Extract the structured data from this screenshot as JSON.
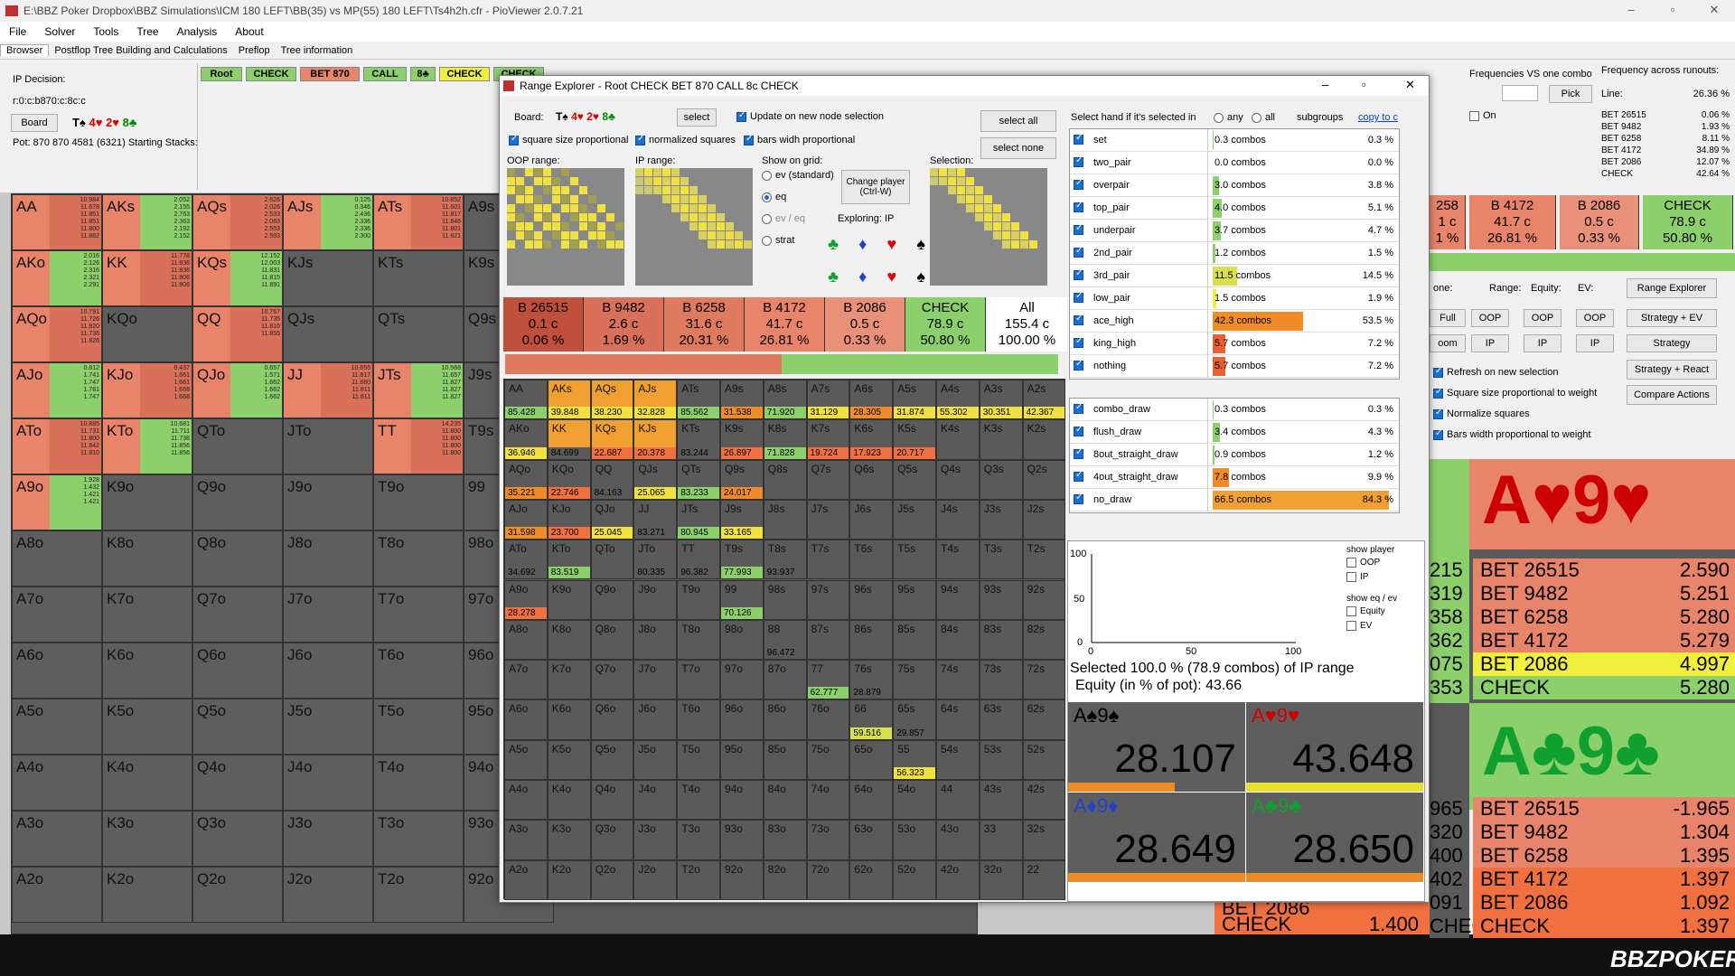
{
  "window": {
    "title": "E:\\BBZ Poker Dropbox\\BBZ Simulations\\ICM 180 LEFT\\BB(35) vs MP(55) 180 LEFT\\Ts4h2h.cfr - PioViewer 2.0.7.21"
  },
  "menu": [
    "File",
    "Solver",
    "Tools",
    "Tree",
    "Analysis",
    "About"
  ],
  "tabs": [
    "Browser",
    "Postflop Tree Building and Calculations",
    "Preflop",
    "Tree information"
  ],
  "left": {
    "decision": "IP Decision:",
    "board_code": "r:0:c:b870:c:8c:c",
    "board_btn": "Board",
    "board_cards": [
      {
        "t": "T♠",
        "c": "#000"
      },
      {
        "t": "4♥",
        "c": "#d00"
      },
      {
        "t": "2♥",
        "c": "#d00"
      },
      {
        "t": "8♣",
        "c": "#080"
      }
    ],
    "pot": "Pot: 870 870 4581 (6321) Starting Stacks:"
  },
  "path": [
    {
      "t": "Root",
      "bg": "#8cd06c"
    },
    {
      "t": "CHECK",
      "bg": "#8cd06c"
    },
    {
      "t": "BET 870",
      "bg": "#e8866a"
    },
    {
      "t": "CALL",
      "bg": "#8cd06c"
    },
    {
      "t": "8♣",
      "bg": "#8cd06c"
    },
    {
      "t": "CHECK",
      "bg": "#f0f03c"
    },
    {
      "t": "CHECK",
      "bg": "#8cd06c"
    }
  ],
  "main_grid": {
    "rows": [
      [
        "AA",
        "AKs",
        "AQs",
        "AJs",
        "ATs",
        "A9s"
      ],
      [
        "AKo",
        "KK",
        "KQs",
        "KJs",
        "KTs",
        "K9s"
      ],
      [
        "AQo",
        "KQo",
        "QQ",
        "QJs",
        "QTs",
        "Q9s"
      ],
      [
        "AJo",
        "KJo",
        "QJo",
        "JJ",
        "JTs",
        "J9s"
      ],
      [
        "ATo",
        "KTo",
        "QTo",
        "JTo",
        "TT",
        "T9s"
      ],
      [
        "A9o",
        "K9o",
        "Q9o",
        "J9o",
        "T9o",
        "99"
      ],
      [
        "A8o",
        "K8o",
        "Q8o",
        "J8o",
        "T8o",
        "98o"
      ],
      [
        "A7o",
        "K7o",
        "Q7o",
        "J7o",
        "T7o",
        "97o"
      ],
      [
        "A6o",
        "K6o",
        "Q6o",
        "J6o",
        "T6o",
        "96o"
      ],
      [
        "A5o",
        "K5o",
        "Q5o",
        "J5o",
        "T5o",
        "95o"
      ],
      [
        "A4o",
        "K4o",
        "Q4o",
        "J4o",
        "T4o",
        "94o"
      ],
      [
        "A3o",
        "K3o",
        "Q3o",
        "J3o",
        "T3o",
        "93o"
      ],
      [
        "A2o",
        "K2o",
        "Q2o",
        "J2o",
        "T2o",
        "92o"
      ]
    ],
    "nums": [
      [
        "10.984\n11.678\n11.851\n11.851\n11.800\n11.862",
        "2.052\n2.155\n2.763\n2.363\n2.192\n2.152",
        "2.626\n2.026\n2.533\n2.063\n2.553\n2.593",
        "0.125\n0.346\n2.436\n2.336\n2.336\n2.300",
        "10.852\n11.601\n11.817\n11.846\n11.801\n11.821",
        ""
      ],
      [
        "2.016\n2.126\n2.316\n2.321\n2.291",
        "11.778\n11.836\n11.836\n11.806\n11.806",
        "12.152\n12.003\n11.831\n11.815\n11.891",
        "",
        "",
        ""
      ],
      [
        "10.791\n11.726\n11.820\n11.736\n11.826",
        "",
        "10.767\n11.735\n11.816\n11.855",
        "",
        "",
        ""
      ],
      [
        "0.812\n1.741\n1.747\n1.781\n1.747",
        "0.437\n1.661\n1.661\n1.668\n1.668",
        "0.657\n1.571\n1.662\n1.662\n1.662",
        "10.655\n11.817\n11.880\n11.811\n11.811",
        "10.568\n11.657\n11.827\n11.827\n11.827",
        ""
      ],
      [
        "10.885\n11.731\n11.800\n11.842\n11.810",
        "10.681\n11.711\n11.738\n11.856\n11.856",
        "",
        "",
        "14.235\n11.800\n11.800\n11.800\n11.800",
        ""
      ],
      [
        "1.928\n1.432\n1.421\n1.421",
        "",
        "",
        "",
        "",
        ""
      ]
    ]
  },
  "dialog": {
    "title": "Range Explorer - Root CHECK BET 870 CALL 8c CHECK",
    "board_label": "Board:",
    "select_btn": "select",
    "update_chk": "Update on new node selection",
    "select_all": "select all",
    "select_none": "select none",
    "sq_prop": "square size proportional",
    "norm_sq": "normalized squares",
    "bars_prop": "bars widh proportional",
    "oop_range": "OOP range:",
    "ip_range": "IP range:",
    "show_on_grid": "Show on grid:",
    "radios": [
      "ev (standard)",
      "eq",
      "ev / eq",
      "strat"
    ],
    "change_player": "Change player\n(Ctrl-W)",
    "exploring": "Exploring: IP",
    "selection": "Selection:",
    "select_hand_label": "Select hand if it's selected in",
    "any": "any",
    "all": "all",
    "subgroups": "subgroups",
    "copy": "copy to c"
  },
  "summary": [
    {
      "a": "B 26515",
      "b": "0.1 c",
      "c": "0.06 %",
      "bg": "#c0503c"
    },
    {
      "a": "B 9482",
      "b": "2.6 c",
      "c": "1.69 %",
      "bg": "#d8705a"
    },
    {
      "a": "B 6258",
      "b": "31.6 c",
      "c": "20.31 %",
      "bg": "#e07a5e"
    },
    {
      "a": "B 4172",
      "b": "41.7 c",
      "c": "26.81 %",
      "bg": "#e8846a"
    },
    {
      "a": "B 2086",
      "b": "0.5 c",
      "c": "0.33 %",
      "bg": "#e89078"
    },
    {
      "a": "CHECK",
      "b": "78.9 c",
      "c": "50.80 %",
      "bg": "#8cd06c"
    },
    {
      "a": "All",
      "b": "155.4 c",
      "c": "100.00 %",
      "bg": "#ffffff"
    }
  ],
  "hand_groups": [
    {
      "n": "set",
      "c": "0.3 combos",
      "p": "0.3 %",
      "w": 1,
      "col": "#8cd06c"
    },
    {
      "n": "two_pair",
      "c": "0.0 combos",
      "p": "0.0 %",
      "w": 0,
      "col": "#8cd06c"
    },
    {
      "n": "overpair",
      "c": "3.0 combos",
      "p": "3.8 %",
      "w": 7,
      "col": "#8cd06c"
    },
    {
      "n": "top_pair",
      "c": "4.0 combos",
      "p": "5.1 %",
      "w": 10,
      "col": "#8cd06c"
    },
    {
      "n": "underpair",
      "c": "3.7 combos",
      "p": "4.7 %",
      "w": 9,
      "col": "#8cd06c"
    },
    {
      "n": "2nd_pair",
      "c": "1.2 combos",
      "p": "1.5 %",
      "w": 3,
      "col": "#8cd06c"
    },
    {
      "n": "3rd_pair",
      "c": "11.5 combos",
      "p": "14.5 %",
      "w": 27,
      "col": "#d8e050"
    },
    {
      "n": "low_pair",
      "c": "1.5 combos",
      "p": "1.9 %",
      "w": 4,
      "col": "#f0f03c"
    },
    {
      "n": "ace_high",
      "c": "42.3 combos",
      "p": "53.5 %",
      "w": 100,
      "col": "#f08c28"
    },
    {
      "n": "king_high",
      "c": "5.7 combos",
      "p": "7.2 %",
      "w": 14,
      "col": "#e86030"
    },
    {
      "n": "nothing",
      "c": "5.7 combos",
      "p": "7.2 %",
      "w": 14,
      "col": "#e86030"
    }
  ],
  "draw_groups": [
    {
      "n": "combo_draw",
      "c": "0.3 combos",
      "p": "0.3 %",
      "w": 1,
      "col": "#8cd06c"
    },
    {
      "n": "flush_draw",
      "c": "3.4 combos",
      "p": "4.3 %",
      "w": 8,
      "col": "#8cd06c"
    },
    {
      "n": "8out_straight_draw",
      "c": "0.9 combos",
      "p": "1.2 %",
      "w": 2,
      "col": "#8cd06c"
    },
    {
      "n": "4out_straight_draw",
      "c": "7.8 combos",
      "p": "9.9 %",
      "w": 18,
      "col": "#f08c28"
    },
    {
      "n": "no_draw",
      "c": "66.5 combos",
      "p": "84.3 %",
      "w": 195,
      "col": "#f0a030"
    }
  ],
  "plot": {
    "y": [
      "100",
      "50",
      "0"
    ],
    "x": [
      "0",
      "50",
      "100"
    ],
    "show_player": "show player",
    "oop": "OOP",
    "ip": "IP",
    "show_eqev": "show eq / ev",
    "equity": "Equity",
    "ev": "EV",
    "sel_text": "Selected 100.0 % (78.9 combos) of IP range",
    "eq_text": "Equity (in % of pot): 43.66"
  },
  "combos": [
    {
      "label": "A♠9♠",
      "lc": "#000",
      "val": "28.107",
      "bg": "#5e5e5e",
      "bar": "#f08c28",
      "bw": 60
    },
    {
      "label": "A♥9♥",
      "lc": "#c00",
      "val": "43.648",
      "bg": "#5e5e5e",
      "bar": "#e8e030",
      "bw": 100
    },
    {
      "label": "A♦9♦",
      "lc": "#2040d0",
      "val": "28.649",
      "bg": "#5e5e5e",
      "bar": "#f08c28",
      "bw": 100
    },
    {
      "label": "A♣9♣",
      "lc": "#10a030",
      "val": "28.650",
      "bg": "#5e5e5e",
      "bar": "#f08c28",
      "bw": 100
    }
  ],
  "right": {
    "freq_vs": "Frequencies VS one combo",
    "pick": "Pick",
    "on": "On",
    "freq_runouts": "Frequency across runouts:",
    "line": "Line:",
    "line_v": "26.36 %",
    "runouts": [
      {
        "a": "BET 26515",
        "b": "0.06 %"
      },
      {
        "a": "BET 9482",
        "b": "1.93 %"
      },
      {
        "a": "BET 6258",
        "b": "8.11 %"
      },
      {
        "a": "BET 4172",
        "b": "34.89 %"
      },
      {
        "a": "BET 2086",
        "b": "12.07 %"
      },
      {
        "a": "CHECK",
        "b": "42.64 %"
      }
    ],
    "tiles": [
      {
        "a": "258",
        "b": "1 c",
        "c": "1 %",
        "bg": "#e8846a"
      },
      {
        "a": "B 4172",
        "b": "41.7 c",
        "c": "26.81 %",
        "bg": "#e8846a"
      },
      {
        "a": "B 2086",
        "b": "0.5 c",
        "c": "0.33 %",
        "bg": "#e89078"
      },
      {
        "a": "CHECK",
        "b": "78.9 c",
        "c": "50.80 %",
        "bg": "#8cd06c"
      }
    ],
    "range": "Range:",
    "equity": "Equity:",
    "ev": "EV:",
    "one": "one:",
    "range_explorer": "Range Explorer",
    "full": "Full",
    "oop": "OOP",
    "ip": "IP",
    "strat_ev": "Strategy + EV",
    "oom": "oom",
    "strategy": "Strategy",
    "strat_react": "Strategy + React",
    "compare": "Compare Actions",
    "refresh": "Refresh on new selection",
    "sqprop": "Square size proportional to weight",
    "normsq": "Normalize squares",
    "barsw": "Bars width proportional to weight",
    "hand1": "A♥9♥",
    "hand2": "A♣9♣",
    "list1": [
      {
        "l": "215",
        "a": "BET 26515",
        "v": "2.590",
        "bg": "#e8846a"
      },
      {
        "l": "319",
        "a": "BET 9482",
        "v": "5.251",
        "bg": "#e8846a"
      },
      {
        "l": "358",
        "a": "BET 6258",
        "v": "5.280",
        "bg": "#e8846a"
      },
      {
        "l": "362",
        "a": "BET 4172",
        "v": "5.279",
        "bg": "#e8846a"
      },
      {
        "l": "075",
        "a": "BET 2086",
        "v": "4.997",
        "bg": "#f0f03c"
      },
      {
        "l": "353",
        "a": "CHECK",
        "v": "5.280",
        "bg": "#8cd06c"
      }
    ],
    "list2": [
      {
        "l": "965",
        "a": "BET 26515",
        "v": "-1.965",
        "bg": "#e8846a"
      },
      {
        "l": "320",
        "a": "BET 9482",
        "v": "1.304",
        "bg": "#e8846a"
      },
      {
        "l": "400",
        "a": "BET 6258",
        "v": "1.395",
        "bg": "#e8846a"
      },
      {
        "l": "402",
        "a": "BET 4172",
        "v": "1.397",
        "bg": "#f07040"
      },
      {
        "l": "091",
        "a": "BET 2086",
        "v": "1.092",
        "bg": "#f07040"
      },
      {
        "l": "CHECK",
        "a": "CHECK",
        "v": "1.397",
        "bg": "#f07040"
      }
    ],
    "bottom_check": "CHECK",
    "bottom_check_v": "1.400",
    "bottom_b2086": "BET 2086"
  },
  "brand": "BBZPOKER",
  "colors": {
    "bet": "#e8846a",
    "check": "#8cd06c",
    "yellow": "#f0f03c",
    "orange": "#f08c28"
  }
}
